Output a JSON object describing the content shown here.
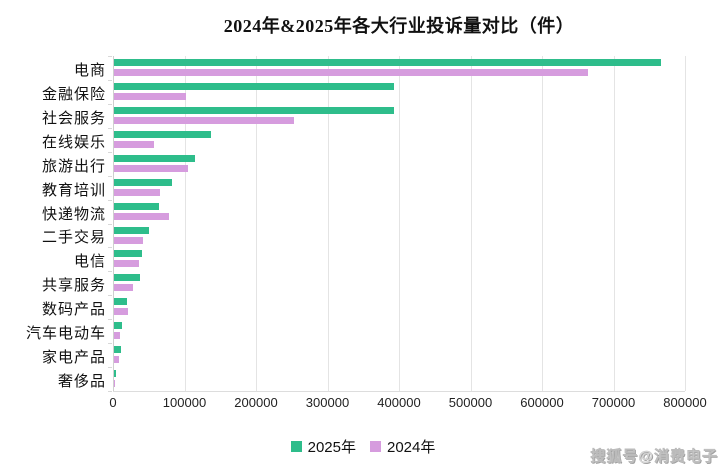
{
  "title": "2024年&2025年各大行业投诉量对比（件）",
  "watermark": "搜狐号@消费电子",
  "colors": {
    "series_2025": "#2EBD8B",
    "series_2024": "#D69CDE",
    "gridline": "#e4e4e4",
    "axis_line": "#cfcfcf",
    "text": "#111111"
  },
  "chart_data": {
    "type": "bar",
    "orientation": "horizontal",
    "title": "2024年&2025年各大行业投诉量对比（件）",
    "categories": [
      "电商",
      "金融保险",
      "社会服务",
      "在线娱乐",
      "旅游出行",
      "教育培训",
      "快递物流",
      "二手交易",
      "电信",
      "共享服务",
      "数码产品",
      "汽车电动车",
      "家电产品",
      "奢侈品"
    ],
    "series": [
      {
        "name": "2025年",
        "color": "#2EBD8B",
        "values": [
          765000,
          392000,
          391000,
          135000,
          113000,
          81000,
          63000,
          49000,
          39000,
          36000,
          17500,
          11500,
          10000,
          3000
        ]
      },
      {
        "name": "2024年",
        "color": "#D69CDE",
        "values": [
          663000,
          101000,
          252000,
          56000,
          103000,
          65000,
          77000,
          40000,
          35000,
          27000,
          19500,
          7700,
          7300,
          2000
        ]
      }
    ],
    "xlim": [
      0,
      800000
    ],
    "xticks": [
      0,
      100000,
      200000,
      300000,
      400000,
      500000,
      600000,
      700000,
      800000
    ],
    "xlabel": "",
    "ylabel": "",
    "grid": "vertical",
    "legend_position": "bottom-center"
  }
}
